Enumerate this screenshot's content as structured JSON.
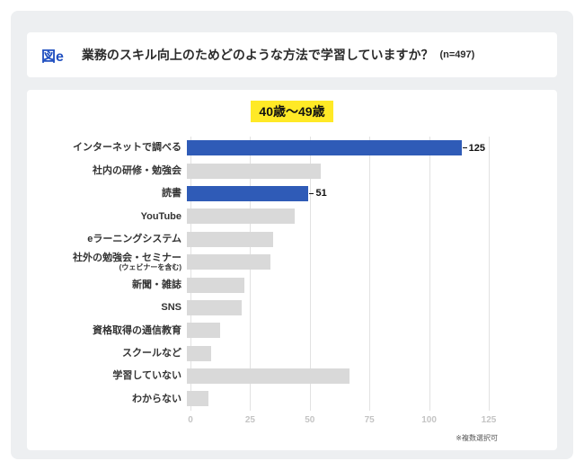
{
  "header": {
    "figure_label": "図e",
    "title": "業務のスキル向上のためどのような方法で学習していますか？",
    "sample_size": "(n=497)"
  },
  "chart_data": {
    "type": "bar",
    "orientation": "horizontal",
    "title": "40歳〜49歳",
    "categories": [
      "インターネットで調べる",
      "社内の研修・勉強会",
      "読書",
      "YouTube",
      "eラーニングシステム",
      "社外の勉強会・セミナー",
      "新聞・雑誌",
      "SNS",
      "資格取得の通信教育",
      "スクールなど",
      "学習していない",
      "わからない"
    ],
    "category_sublabels": {
      "5": "(ウェビナーを含む)"
    },
    "values": [
      125,
      56,
      51,
      45,
      36,
      35,
      24,
      23,
      14,
      10,
      68,
      9
    ],
    "highlighted_indices": [
      0,
      2
    ],
    "data_labels": {
      "0": "125",
      "2": "51"
    },
    "xlim": [
      0,
      125
    ],
    "xticks": [
      0,
      25,
      50,
      75,
      100,
      125
    ],
    "colors": {
      "highlight": "#2f5bb7",
      "default": "#d9d9d9"
    },
    "grid": "vertical",
    "legend": "none",
    "footnote": "※複数選択可"
  }
}
